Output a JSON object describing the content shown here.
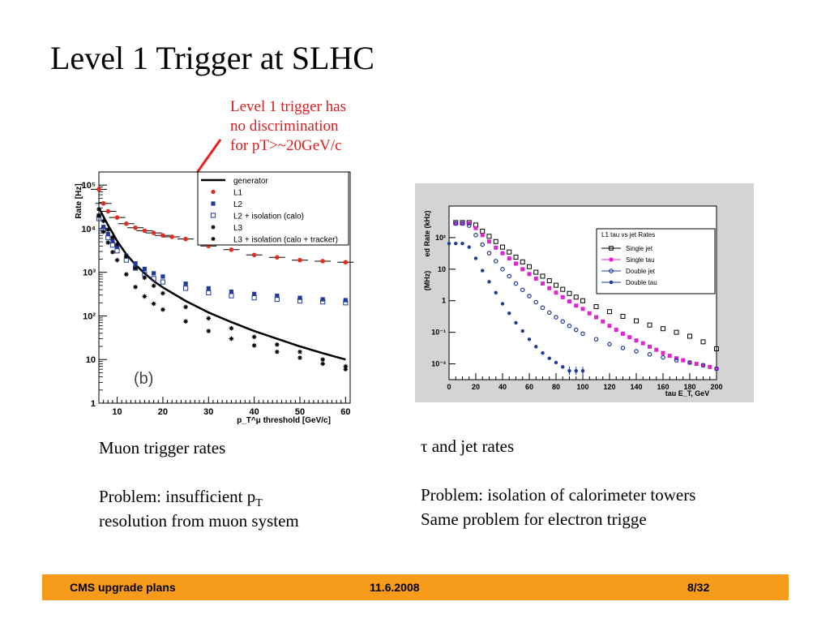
{
  "slide": {
    "title": "Level 1 Trigger at SLHC",
    "annotation_lines": [
      "Level 1 trigger has",
      "no discrimination",
      "for pT>~20GeV/c"
    ],
    "annotation_color": "#dd1e1e",
    "muon_caption": {
      "line1": "Muon trigger rates",
      "problem_prefix": "Problem: insufficient p",
      "problem_sub": "T",
      "problem_line2": "resolution from muon system"
    },
    "tau_caption": {
      "line1": "τ and jet rates",
      "problem_line1": "Problem: isolation of calorimeter towers",
      "problem_line2": "Same problem for electron trigge"
    }
  },
  "footer": {
    "left": "CMS upgrade plans",
    "center": "11.6.2008",
    "right": "8/32",
    "color": "#f79b1b"
  },
  "chart_data": [
    {
      "type": "scatter",
      "panel_label": "(b)",
      "xlabel": "p_T^μ threshold [GeV/c]",
      "ylabel": "Rate [Hz]",
      "xlim": [
        6,
        61
      ],
      "ylim_log10": [
        0,
        5.3
      ],
      "yscale": "log",
      "x_ticks": [
        10,
        20,
        30,
        40,
        50,
        60
      ],
      "y_tick_labels": [
        "1",
        "10",
        "10²",
        "10³",
        "10⁴",
        "10⁵"
      ],
      "legend_position": "top-right",
      "series": [
        {
          "name": "generator",
          "marker": "line",
          "color": "#000000",
          "x": [
            6,
            7,
            8,
            9,
            10,
            12,
            14,
            16,
            18,
            20,
            25,
            30,
            35,
            40,
            45,
            50,
            55,
            60
          ],
          "y": [
            30000,
            19000,
            12000,
            8000,
            5200,
            2600,
            1500,
            950,
            630,
            450,
            220,
            120,
            72,
            45,
            30,
            20,
            14,
            10
          ]
        },
        {
          "name": "L1",
          "marker": "circle-filled",
          "color": "#e32b20",
          "x": [
            6,
            7,
            8,
            10,
            12,
            14,
            16,
            18,
            20,
            22,
            25,
            30,
            35,
            40,
            45,
            50,
            55,
            60
          ],
          "y": [
            80000,
            38000,
            25000,
            18000,
            13000,
            10500,
            9000,
            8000,
            7000,
            6500,
            5800,
            4000,
            3300,
            2500,
            2200,
            1900,
            1800,
            1700
          ]
        },
        {
          "name": "L2",
          "marker": "square-filled",
          "color": "#1f3a9a",
          "x": [
            6,
            7,
            8,
            9,
            10,
            12,
            14,
            16,
            18,
            20,
            25,
            30,
            35,
            40,
            45,
            50,
            55,
            60
          ],
          "y": [
            20000,
            11000,
            7500,
            5200,
            3900,
            2400,
            1600,
            1200,
            950,
            800,
            550,
            430,
            360,
            320,
            290,
            260,
            240,
            230
          ]
        },
        {
          "name": "L2 + isolation (calo)",
          "marker": "square-open",
          "color": "#1f3a9a",
          "x": [
            6,
            7,
            8,
            9,
            10,
            12,
            14,
            16,
            18,
            20,
            25,
            30,
            35,
            40,
            45,
            50,
            55,
            60
          ],
          "y": [
            17000,
            9500,
            6200,
            4200,
            3100,
            1900,
            1250,
            920,
            720,
            600,
            430,
            340,
            290,
            260,
            240,
            220,
            210,
            200
          ]
        },
        {
          "name": "L3",
          "marker": "star",
          "color": "#000000",
          "x": [
            6,
            7,
            8,
            9,
            10,
            12,
            14,
            16,
            18,
            20,
            25,
            30,
            35,
            40,
            45,
            50,
            55,
            60
          ],
          "y": [
            28000,
            15000,
            9500,
            6300,
            4400,
            2300,
            1250,
            750,
            490,
            330,
            160,
            88,
            52,
            33,
            22,
            15,
            10,
            7
          ]
        },
        {
          "name": "L3 + isolation (calo + tracker)",
          "marker": "star",
          "color": "#000000",
          "x": [
            6,
            7,
            8,
            9,
            10,
            12,
            14,
            16,
            18,
            20,
            25,
            30,
            35,
            40,
            45,
            50,
            55,
            60
          ],
          "y": [
            20000,
            8500,
            4800,
            2900,
            1900,
            900,
            460,
            280,
            190,
            140,
            75,
            45,
            30,
            21,
            15,
            11,
            8,
            6
          ]
        }
      ]
    },
    {
      "type": "scatter",
      "legend_title": "L1 tau vs jet Rates",
      "xlabel": "tau E_T, GeV",
      "ylabel": "ed Rate (kHz)",
      "ylabel_extra": "(MHz)",
      "xlim": [
        0,
        200
      ],
      "ylim_log10": [
        -2.5,
        3
      ],
      "yscale": "log",
      "x_ticks": [
        0,
        20,
        40,
        60,
        80,
        100,
        120,
        140,
        160,
        180,
        200
      ],
      "y_tick_labels": [
        "10⁻²",
        "10⁻¹",
        "1",
        "10",
        "10²"
      ],
      "legend_position": "top-right",
      "series": [
        {
          "name": "Single jet",
          "marker": "square-open",
          "color": "#000000",
          "x": [
            5,
            10,
            15,
            20,
            25,
            30,
            35,
            40,
            45,
            50,
            55,
            60,
            65,
            70,
            75,
            80,
            85,
            90,
            95,
            100,
            110,
            120,
            130,
            140,
            150,
            160,
            170,
            180,
            190,
            200
          ],
          "y": [
            300,
            300,
            300,
            250,
            160,
            110,
            75,
            50,
            35,
            24,
            17,
            12,
            8,
            6,
            4.3,
            3.1,
            2.3,
            1.7,
            1.3,
            1,
            0.65,
            0.45,
            0.32,
            0.23,
            0.17,
            0.13,
            0.1,
            0.075,
            0.05,
            0.03
          ]
        },
        {
          "name": "Single tau",
          "marker": "square-filled",
          "color": "#e024d0",
          "x": [
            5,
            10,
            15,
            20,
            25,
            30,
            35,
            40,
            45,
            50,
            55,
            60,
            65,
            70,
            75,
            80,
            85,
            90,
            95,
            100,
            105,
            110,
            115,
            120,
            125,
            130,
            135,
            140,
            145,
            150,
            155,
            160,
            165,
            170,
            175,
            180,
            185,
            190,
            195,
            200
          ],
          "y": [
            280,
            280,
            280,
            200,
            120,
            75,
            48,
            32,
            22,
            15,
            10,
            7,
            5,
            3.5,
            2.5,
            1.8,
            1.3,
            0.95,
            0.7,
            0.55,
            0.4,
            0.3,
            0.22,
            0.16,
            0.12,
            0.09,
            0.07,
            0.055,
            0.045,
            0.035,
            0.028,
            0.022,
            0.018,
            0.015,
            0.013,
            0.011,
            0.01,
            0.009,
            0.008,
            0.007
          ]
        },
        {
          "name": "Double jet",
          "marker": "circle-open",
          "color": "#1f3a9a",
          "x": [
            5,
            10,
            15,
            20,
            25,
            30,
            35,
            40,
            45,
            50,
            55,
            60,
            65,
            70,
            75,
            80,
            85,
            90,
            95,
            100,
            110,
            120,
            130,
            140,
            150,
            160,
            170,
            180,
            190,
            200
          ],
          "y": [
            280,
            280,
            240,
            120,
            60,
            32,
            18,
            10,
            6,
            3.5,
            2.2,
            1.4,
            0.9,
            0.6,
            0.42,
            0.3,
            0.22,
            0.16,
            0.12,
            0.09,
            0.06,
            0.042,
            0.032,
            0.025,
            0.02,
            0.016,
            0.013,
            0.011,
            0.009,
            0.007
          ]
        },
        {
          "name": "Double tau",
          "marker": "circle-filled",
          "color": "#1f3a9a",
          "x": [
            0,
            5,
            10,
            15,
            20,
            25,
            30,
            35,
            40,
            45,
            50,
            55,
            60,
            65,
            70,
            75,
            80,
            85,
            90,
            95,
            100
          ],
          "y": [
            65,
            65,
            65,
            50,
            22,
            9,
            4,
            1.8,
            0.8,
            0.4,
            0.2,
            0.11,
            0.06,
            0.035,
            0.022,
            0.015,
            0.011,
            0.008,
            0.006,
            0.006,
            0.006
          ]
        }
      ]
    }
  ]
}
